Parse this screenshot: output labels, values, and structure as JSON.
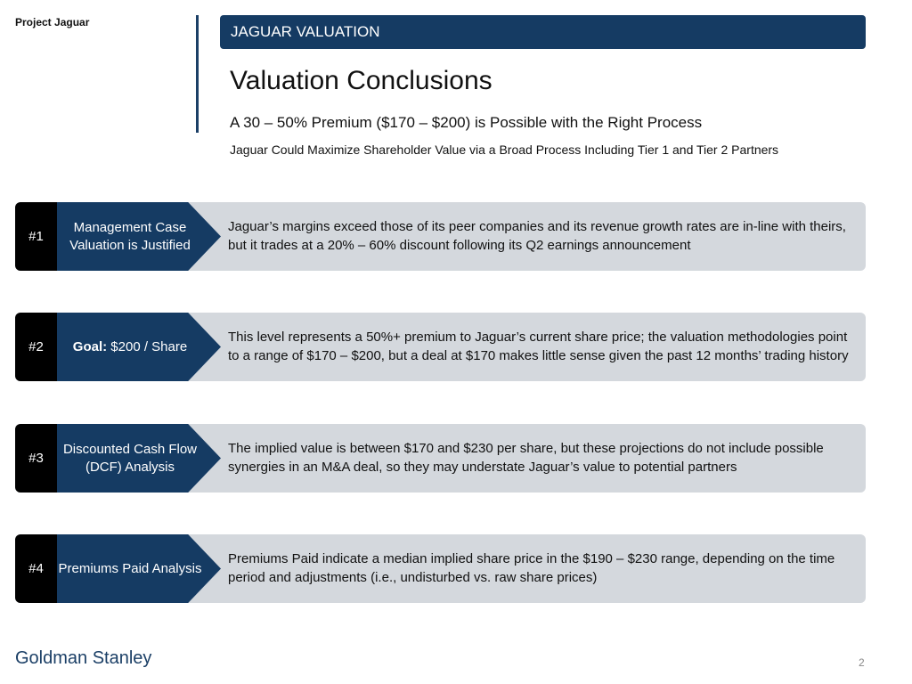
{
  "header": {
    "project": "Project Jaguar",
    "section": "JAGUAR VALUATION",
    "title": "Valuation Conclusions",
    "subtitle": "A 30 – 50% Premium ($170 – $200) is Possible with the Right Process",
    "tagline": "Jaguar Could Maximize Shareholder Value via a Broad Process Including Tier 1 and Tier 2 Partners"
  },
  "rows": [
    {
      "number": "#1",
      "label": "Management Case Valuation is Justified",
      "description": "Jaguar’s margins exceed those of its peer companies and its revenue growth rates are in-line with theirs, but it trades at a 20% – 60% discount following its Q2 earnings announcement"
    },
    {
      "number": "#2",
      "label_bold": "Goal:",
      "label": "$200 / Share",
      "description": "This level represents a 50%+ premium to Jaguar’s current share price; the valuation methodologies point to a range of $170 – $200, but a deal at $170 makes little sense given the past 12 months’ trading history"
    },
    {
      "number": "#3",
      "label": "Discounted Cash Flow (DCF) Analysis",
      "description": "The implied value is between $170 and $230 per share, but these projections do not include possible synergies in an M&A deal, so they may understate Jaguar’s value to potential partners"
    },
    {
      "number": "#4",
      "label": "Premiums Paid Analysis",
      "description": "Premiums Paid indicate a median implied share price in the $190 – $230 range, depending on the time period and adjustments (i.e., undisturbed vs. raw share prices)"
    }
  ],
  "footer": {
    "brand": "Goldman Stanley",
    "page": "2"
  },
  "colors": {
    "navy": "#153b63",
    "row_bg": "#d4d8dd",
    "number_bg": "#000000"
  }
}
